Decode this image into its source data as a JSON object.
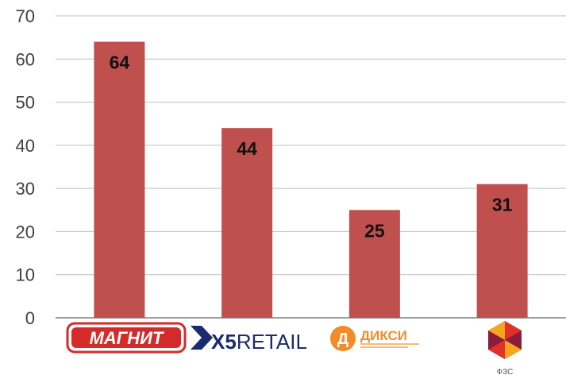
{
  "chart_data": {
    "type": "bar",
    "categories": [
      "МАГНИТ",
      "X5RETAIL",
      "ДИКСИ",
      "ФЗС"
    ],
    "values": [
      64,
      44,
      25,
      31
    ],
    "ylim": [
      0,
      70
    ],
    "yticks": [
      0,
      10,
      20,
      30,
      40,
      50,
      60,
      70
    ],
    "grid": true,
    "title": "",
    "xlabel": "",
    "ylabel": "",
    "colors": {
      "bar": "#c0504d",
      "grid": "#bfbfbf",
      "axis": "#808080"
    }
  },
  "logos": {
    "magnit": {
      "text": "МАГНИТ",
      "color": "#d42a2a"
    },
    "x5": {
      "prefix": "X5",
      "suffix": "RETAIL",
      "arrow_color": "#1a2c6b"
    },
    "dixy": {
      "letter": "Д",
      "text": "ДИКСИ",
      "color": "#f28c28"
    },
    "fzs": {
      "caption": "ФЗС",
      "colors": [
        "#f7a51c",
        "#e0312b",
        "#8b1d3a"
      ]
    }
  }
}
